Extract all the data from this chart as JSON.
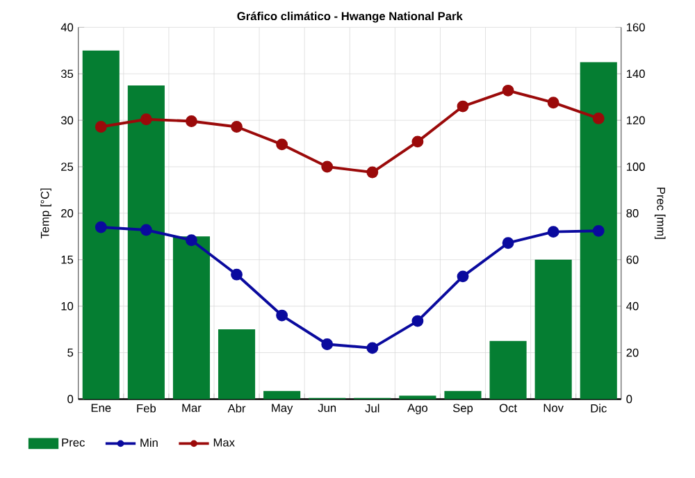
{
  "chart_data": {
    "type": "line",
    "title": "Gráfico climático - Hwange National Park",
    "ylabel": "Temp [°C]",
    "y2label": "Prec [mm]",
    "categories": [
      "Ene",
      "Feb",
      "Mar",
      "Abr",
      "May",
      "Jun",
      "Jul",
      "Ago",
      "Sep",
      "Oct",
      "Nov",
      "Dic"
    ],
    "series": [
      {
        "name": "Prec",
        "type": "bar",
        "axis": "y2",
        "color": "#057e32",
        "values": [
          150,
          135,
          70,
          30,
          3.5,
          0.5,
          0.5,
          1.5,
          3.5,
          25,
          60,
          145
        ]
      },
      {
        "name": "Min",
        "color": "#0a0a9e",
        "values": [
          18.5,
          18.2,
          17.1,
          13.4,
          9.0,
          5.9,
          5.5,
          8.4,
          13.2,
          16.8,
          18.0,
          18.1
        ]
      },
      {
        "name": "Max",
        "color": "#9b0a0a",
        "values": [
          29.3,
          30.1,
          29.9,
          29.3,
          27.4,
          25.0,
          24.4,
          27.7,
          31.5,
          33.2,
          31.9,
          30.2
        ]
      }
    ],
    "ylim": [
      0,
      40
    ],
    "yticks": [
      0,
      5,
      10,
      15,
      20,
      25,
      30,
      35,
      40
    ],
    "y2lim": [
      0,
      160
    ],
    "y2ticks": [
      0,
      20,
      40,
      60,
      80,
      100,
      120,
      140,
      160
    ],
    "grid": true,
    "legend": "bottom",
    "marker": "circle"
  }
}
